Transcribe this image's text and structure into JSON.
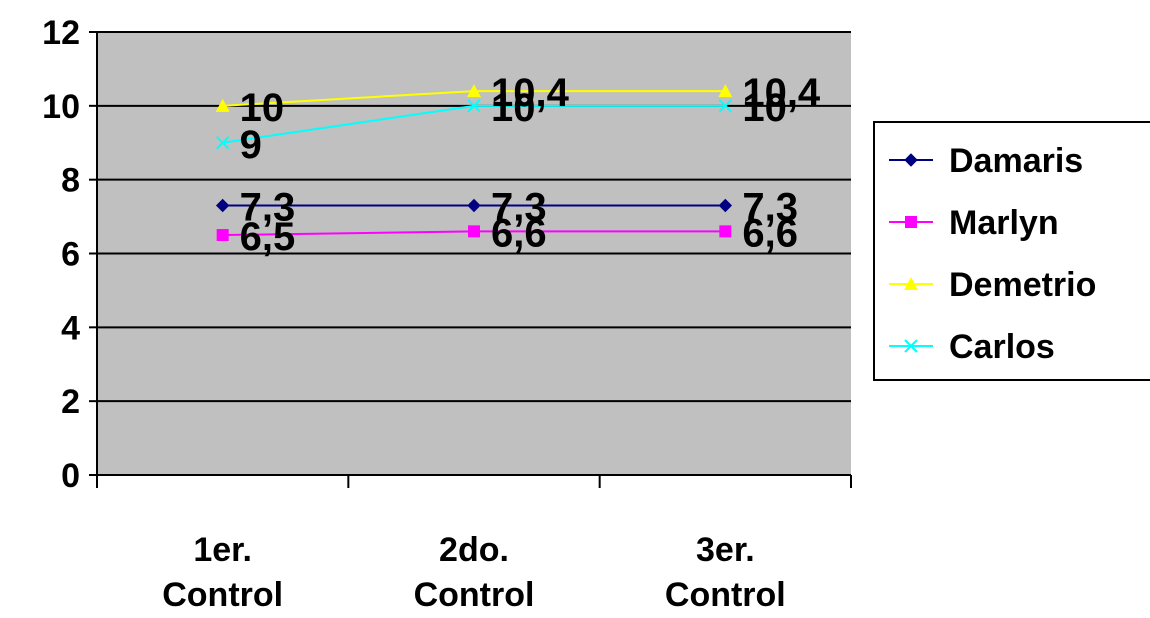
{
  "chart_data": {
    "type": "line",
    "categories": [
      "1er. Control",
      "2do. Control",
      "3er. Control"
    ],
    "ylim": [
      0,
      12
    ],
    "yticks": [
      0,
      2,
      4,
      6,
      8,
      10,
      12
    ],
    "y_tick_labels": [
      "0",
      "2",
      "4",
      "6",
      "8",
      "10",
      "12"
    ],
    "grid": true,
    "plot_background": "#c0c0c0",
    "legend_position": "right",
    "series": [
      {
        "name": "Damaris",
        "values": [
          7.3,
          7.3,
          7.3
        ],
        "labels": [
          "7,3",
          "7,3",
          "7,3"
        ],
        "color": "#000080",
        "marker": "diamond"
      },
      {
        "name": "Marlyn",
        "values": [
          6.5,
          6.6,
          6.6
        ],
        "labels": [
          "6,5",
          "6,6",
          "6,6"
        ],
        "color": "#ff00ff",
        "marker": "square"
      },
      {
        "name": "Demetrio",
        "values": [
          10,
          10.4,
          10.4
        ],
        "labels": [
          "10",
          "10,4",
          "10,4"
        ],
        "color": "#ffff00",
        "marker": "triangle"
      },
      {
        "name": "Carlos",
        "values": [
          9,
          10,
          10
        ],
        "labels": [
          "9",
          "10",
          "10"
        ],
        "color": "#00ffff",
        "marker": "x"
      }
    ]
  }
}
